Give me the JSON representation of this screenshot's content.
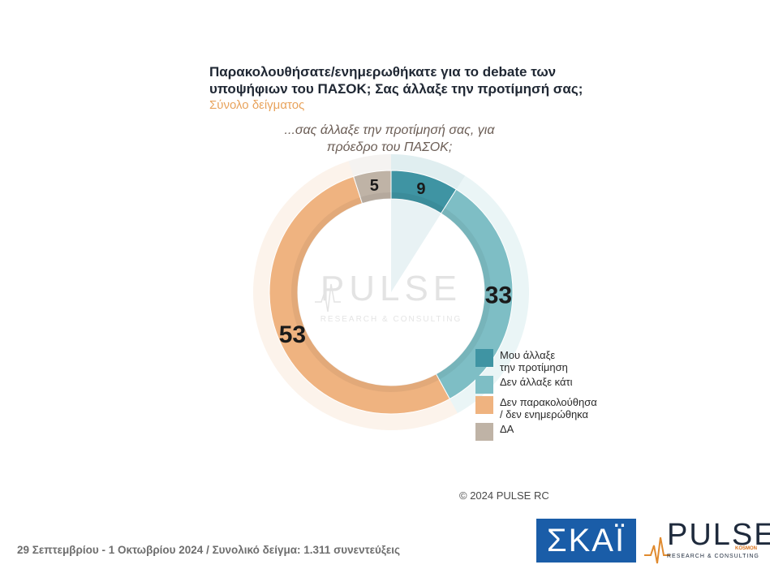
{
  "chart_data": {
    "type": "pie",
    "title": "Παρακολουθήσατε/ενημερωθήκατε για το debate των υποψήφιων του ΠΑΣΟΚ;  Σας άλλαξε την προτίμησή σας;",
    "subtitle": "Σύνολο δείγματος",
    "question": "...σας άλλαξε την προτίμησή σας, για πρόεδρο του ΠΑΣΟΚ;",
    "categories": [
      "Μου άλλαξε\nτην προτίμηση",
      "Δεν άλλαξε κάτι",
      "Δεν παρακολούθησα\n/ δεν ενημερώθηκα",
      "ΔΑ"
    ],
    "values": [
      9,
      33,
      53,
      5
    ],
    "colors": [
      "#3f94a3",
      "#7ebec5",
      "#efb380",
      "#bfb3a6"
    ],
    "legend_position": "right"
  },
  "watermark": {
    "name": "PULSE",
    "tagline": "RESEARCH & CONSULTING"
  },
  "copyright": "© 2024 PULSE RC",
  "footer": "29 Σεπτεμβρίου - 1 Οκτωβρίου 2024  /  Συνολικό δείγμα:  1.311 συνεντεύξεις",
  "logos": {
    "skai": "ΣΚΑΪ",
    "pulse": "PULSE",
    "pulse_tagline": "RESEARCH & CONSULTING",
    "pulse_badge": "KOSMON"
  }
}
